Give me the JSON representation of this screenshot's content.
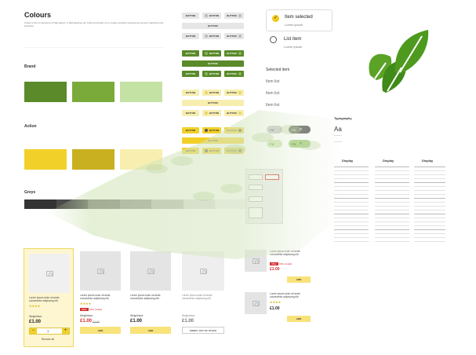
{
  "colours": {
    "title": "Colours",
    "intro": "Colour is the cornerstone of Digi design. It distinguishes our brand and helps us to create excellent experiences across marketing and products.",
    "brand_heading": "Brand",
    "action_heading": "Action",
    "greys_heading": "Greys",
    "brand_swatches": [
      {
        "color": "#5a8a2a"
      },
      {
        "color": "#7aab3a"
      },
      {
        "color": "#c5e2a5"
      }
    ],
    "action_swatches": [
      {
        "color": "#f2d02a"
      },
      {
        "color": "#c9b020"
      },
      {
        "color": "#f7eeb0"
      }
    ],
    "grey_swatches": [
      {
        "color": "#333333"
      },
      {
        "color": "#4a4a4a"
      },
      {
        "color": "#6e6e6e"
      },
      {
        "color": "#8e8e8e"
      },
      {
        "color": "#b5b5b5"
      },
      {
        "color": "#d9d9d9"
      },
      {
        "color": "#eeeeee"
      }
    ]
  },
  "buttons": {
    "label": "BUTTON"
  },
  "selection": {
    "selected_title": "Item selected",
    "selected_sub": "Lorem ipsum",
    "list_title": "List item",
    "list_sub": "Lorem ipsum",
    "selected_item": "Selected item",
    "list_items": [
      "Item list",
      "Item list",
      "Item list"
    ]
  },
  "pills": [
    "Pill",
    "Pill",
    "Pill",
    "Pill"
  ],
  "typography": {
    "heading": "Typography",
    "aa": "Aa",
    "display": "Display"
  },
  "products": {
    "desc": "Lorem ipsum dolor sit amet, consectetur adipiscing elit.",
    "weight": "Weight/size",
    "price": "£1.00",
    "offer_price": "£1.00",
    "was_price": "£2.00",
    "offer_badge": "Offer",
    "offer_link": "Offer details",
    "add": "ADD",
    "quantity": "1",
    "remove": "Remove all",
    "out_of_stock": "SORRY, OUT OF STOCK"
  },
  "theme": {
    "brand_green": "#5a8a2a",
    "action_yellow": "#f2d02a",
    "leaf_green": "#4e9a1e"
  }
}
